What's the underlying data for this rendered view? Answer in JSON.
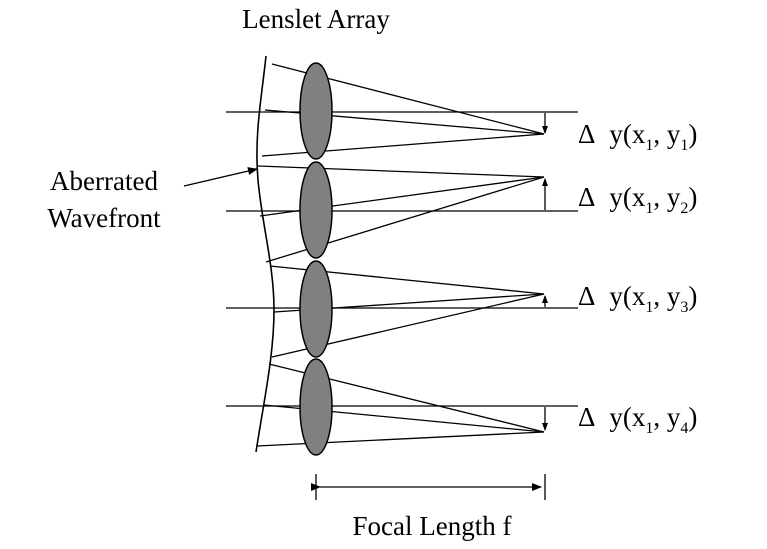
{
  "title": "Lenslet Array",
  "wavefront_label_line1": "Aberrated",
  "wavefront_label_line2": "Wavefront",
  "focal_length_label": "Focal Length f",
  "delta_symbol": "Δ",
  "displacement_labels": [
    {
      "prefix": "y(x",
      "sub1": "1",
      "mid": ", y",
      "sub2": "1",
      "suffix": ")"
    },
    {
      "prefix": "y(x",
      "sub1": "1",
      "mid": ", y",
      "sub2": "2",
      "suffix": ")"
    },
    {
      "prefix": "y(x",
      "sub1": "1",
      "mid": ", y",
      "sub2": "3",
      "suffix": ")"
    },
    {
      "prefix": "y(x",
      "sub1": "1",
      "mid": ", y",
      "sub2": "4",
      "suffix": ")"
    }
  ],
  "colors": {
    "line": "#000000",
    "lens_fill": "#808080",
    "background": "#ffffff"
  }
}
